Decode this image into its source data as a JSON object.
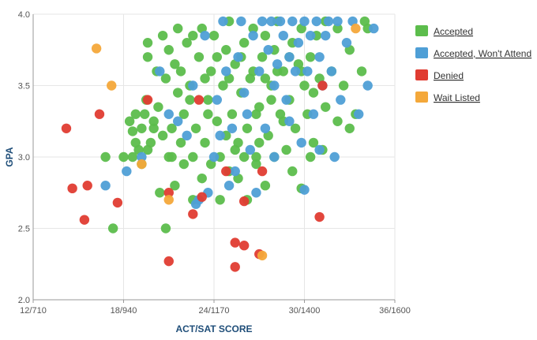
{
  "chart_data": {
    "type": "scatter",
    "xlabel": "ACT/SAT SCORE",
    "ylabel": "GPA",
    "xlim": [
      12,
      36
    ],
    "ylim": [
      2.0,
      4.0
    ],
    "x_ticks": [
      {
        "value": 12,
        "label": "12/710"
      },
      {
        "value": 18,
        "label": "18/940"
      },
      {
        "value": 24,
        "label": "24/1170"
      },
      {
        "value": 30,
        "label": "30/1400"
      },
      {
        "value": 36,
        "label": "36/1600"
      }
    ],
    "y_ticks": [
      {
        "value": 2.0,
        "label": "2.0"
      },
      {
        "value": 2.5,
        "label": "2.5"
      },
      {
        "value": 3.0,
        "label": "3.0"
      },
      {
        "value": 3.5,
        "label": "3.5"
      },
      {
        "value": 4.0,
        "label": "4.0"
      }
    ],
    "grid": true,
    "legend_position": "right",
    "series": [
      {
        "name": "Accepted",
        "color": "#5cbd4c",
        "points": [
          [
            18.4,
            3.25
          ],
          [
            18.6,
            3.18
          ],
          [
            18.8,
            3.3
          ],
          [
            19.0,
            3.05
          ],
          [
            19.2,
            3.2
          ],
          [
            19.5,
            3.4
          ],
          [
            19.6,
            3.7
          ],
          [
            19.6,
            3.8
          ],
          [
            19.8,
            3.1
          ],
          [
            20.0,
            3.25
          ],
          [
            20.3,
            3.35
          ],
          [
            20.6,
            3.85
          ],
          [
            20.8,
            3.55
          ],
          [
            21.0,
            3.0
          ],
          [
            21.2,
            3.2
          ],
          [
            21.4,
            3.65
          ],
          [
            21.6,
            3.9
          ],
          [
            21.6,
            3.45
          ],
          [
            21.8,
            3.1
          ],
          [
            22.0,
            3.3
          ],
          [
            22.2,
            3.8
          ],
          [
            22.4,
            3.5
          ],
          [
            22.6,
            3.0
          ],
          [
            22.8,
            3.2
          ],
          [
            23.0,
            3.7
          ],
          [
            23.2,
            3.9
          ],
          [
            23.4,
            3.1
          ],
          [
            23.6,
            3.4
          ],
          [
            23.8,
            3.6
          ],
          [
            24.0,
            3.85
          ],
          [
            24.2,
            3.25
          ],
          [
            24.4,
            3.0
          ],
          [
            24.6,
            3.5
          ],
          [
            24.8,
            3.75
          ],
          [
            25.0,
            3.95
          ],
          [
            25.2,
            3.3
          ],
          [
            25.4,
            3.65
          ],
          [
            25.6,
            3.1
          ],
          [
            25.8,
            3.45
          ],
          [
            26.0,
            3.8
          ],
          [
            26.2,
            3.2
          ],
          [
            26.4,
            3.55
          ],
          [
            26.6,
            3.9
          ],
          [
            26.8,
            3.0
          ],
          [
            27.0,
            3.35
          ],
          [
            27.2,
            3.7
          ],
          [
            27.4,
            3.85
          ],
          [
            27.6,
            3.15
          ],
          [
            27.8,
            3.5
          ],
          [
            28.0,
            3.75
          ],
          [
            28.2,
            3.95
          ],
          [
            28.4,
            3.3
          ],
          [
            28.6,
            3.6
          ],
          [
            28.8,
            3.05
          ],
          [
            29.0,
            3.4
          ],
          [
            29.2,
            3.8
          ],
          [
            29.4,
            3.2
          ],
          [
            29.6,
            3.65
          ],
          [
            29.8,
            3.9
          ],
          [
            30.0,
            3.5
          ],
          [
            30.2,
            3.3
          ],
          [
            30.4,
            3.7
          ],
          [
            30.6,
            3.1
          ],
          [
            30.8,
            3.85
          ],
          [
            31.0,
            3.55
          ],
          [
            31.4,
            3.95
          ],
          [
            31.8,
            3.6
          ],
          [
            32.2,
            3.9
          ],
          [
            32.6,
            3.5
          ],
          [
            33.0,
            3.75
          ],
          [
            33.4,
            3.3
          ],
          [
            33.8,
            3.6
          ],
          [
            34.2,
            3.9
          ],
          [
            34.0,
            3.95
          ],
          [
            16.8,
            3.0
          ],
          [
            17.3,
            2.5
          ],
          [
            18.0,
            3.0
          ],
          [
            18.6,
            3.0
          ],
          [
            19.2,
            2.95
          ],
          [
            19.6,
            3.05
          ],
          [
            20.0,
            3.2
          ],
          [
            20.4,
            2.75
          ],
          [
            20.8,
            2.5
          ],
          [
            21.4,
            2.8
          ],
          [
            22.0,
            2.95
          ],
          [
            22.6,
            2.7
          ],
          [
            23.2,
            2.85
          ],
          [
            23.8,
            2.95
          ],
          [
            24.4,
            2.7
          ],
          [
            25.0,
            2.9
          ],
          [
            25.6,
            2.85
          ],
          [
            26.2,
            2.7
          ],
          [
            26.8,
            2.95
          ],
          [
            27.4,
            2.8
          ],
          [
            28.0,
            3.0
          ],
          [
            29.2,
            2.9
          ],
          [
            29.8,
            2.78
          ],
          [
            30.4,
            3.0
          ],
          [
            31.2,
            3.05
          ],
          [
            20.2,
            3.6
          ],
          [
            21.0,
            3.75
          ],
          [
            21.8,
            3.6
          ],
          [
            22.6,
            3.85
          ],
          [
            23.4,
            3.55
          ],
          [
            24.2,
            3.7
          ],
          [
            25.0,
            3.55
          ],
          [
            25.8,
            3.7
          ],
          [
            26.6,
            3.6
          ],
          [
            27.4,
            3.55
          ],
          [
            28.2,
            3.6
          ],
          [
            29.0,
            3.7
          ],
          [
            29.8,
            3.6
          ],
          [
            30.6,
            3.45
          ],
          [
            31.4,
            3.35
          ],
          [
            32.2,
            3.25
          ],
          [
            33.0,
            3.2
          ],
          [
            28.6,
            3.25
          ],
          [
            27.0,
            3.1
          ],
          [
            26.0,
            3.0
          ],
          [
            24.8,
            3.15
          ],
          [
            23.6,
            3.3
          ],
          [
            22.4,
            3.4
          ],
          [
            21.2,
            3.0
          ],
          [
            20.6,
            3.15
          ],
          [
            19.4,
            3.3
          ],
          [
            18.8,
            3.1
          ],
          [
            25.4,
            3.05
          ],
          [
            26.8,
            3.3
          ],
          [
            27.8,
            3.4
          ]
        ]
      },
      {
        "name": "Accepted, Won't Attend",
        "color": "#4f9fd6",
        "points": [
          [
            16.8,
            2.8
          ],
          [
            18.2,
            2.9
          ],
          [
            19.2,
            3.0
          ],
          [
            20.4,
            3.6
          ],
          [
            21.0,
            3.3
          ],
          [
            21.6,
            3.25
          ],
          [
            22.2,
            3.15
          ],
          [
            22.6,
            3.5
          ],
          [
            23.0,
            2.7
          ],
          [
            23.4,
            3.85
          ],
          [
            23.6,
            2.75
          ],
          [
            24.0,
            3.0
          ],
          [
            24.2,
            3.4
          ],
          [
            24.6,
            3.95
          ],
          [
            24.8,
            3.6
          ],
          [
            25.0,
            2.8
          ],
          [
            25.2,
            3.2
          ],
          [
            25.6,
            3.7
          ],
          [
            25.8,
            3.95
          ],
          [
            26.0,
            3.45
          ],
          [
            26.2,
            3.3
          ],
          [
            26.6,
            3.85
          ],
          [
            26.8,
            2.75
          ],
          [
            27.0,
            3.6
          ],
          [
            27.2,
            3.95
          ],
          [
            27.4,
            3.2
          ],
          [
            27.6,
            3.75
          ],
          [
            27.8,
            3.95
          ],
          [
            28.0,
            3.5
          ],
          [
            28.2,
            3.65
          ],
          [
            28.4,
            3.95
          ],
          [
            28.6,
            3.85
          ],
          [
            28.8,
            3.4
          ],
          [
            29.0,
            3.7
          ],
          [
            29.2,
            3.95
          ],
          [
            29.4,
            3.6
          ],
          [
            29.6,
            3.8
          ],
          [
            29.8,
            3.1
          ],
          [
            30.0,
            3.95
          ],
          [
            30.2,
            3.6
          ],
          [
            30.4,
            3.85
          ],
          [
            30.6,
            3.3
          ],
          [
            30.8,
            3.95
          ],
          [
            31.0,
            3.7
          ],
          [
            31.2,
            3.5
          ],
          [
            31.4,
            3.85
          ],
          [
            31.6,
            3.95
          ],
          [
            31.8,
            3.6
          ],
          [
            32.2,
            3.95
          ],
          [
            32.4,
            3.4
          ],
          [
            32.8,
            3.8
          ],
          [
            33.2,
            3.95
          ],
          [
            33.6,
            3.3
          ],
          [
            34.2,
            3.5
          ],
          [
            34.6,
            3.9
          ],
          [
            28.0,
            3.0
          ],
          [
            29.0,
            3.25
          ],
          [
            30.0,
            2.77
          ],
          [
            31.0,
            3.05
          ],
          [
            32.0,
            3.0
          ],
          [
            25.4,
            2.9
          ],
          [
            26.4,
            3.05
          ],
          [
            22.8,
            2.67
          ],
          [
            24.4,
            3.15
          ]
        ]
      },
      {
        "name": "Denied",
        "color": "#e03c31",
        "points": [
          [
            14.2,
            3.2
          ],
          [
            14.6,
            2.78
          ],
          [
            15.4,
            2.56
          ],
          [
            15.6,
            2.8
          ],
          [
            16.4,
            3.3
          ],
          [
            17.6,
            2.68
          ],
          [
            19.6,
            3.4
          ],
          [
            21.0,
            2.75
          ],
          [
            21.0,
            2.27
          ],
          [
            22.6,
            2.6
          ],
          [
            23.2,
            2.72
          ],
          [
            23.0,
            3.4
          ],
          [
            24.8,
            2.9
          ],
          [
            25.4,
            2.4
          ],
          [
            25.4,
            2.23
          ],
          [
            26.0,
            2.38
          ],
          [
            26.0,
            2.69
          ],
          [
            27.0,
            2.32
          ],
          [
            27.2,
            2.9
          ],
          [
            31.0,
            2.58
          ],
          [
            31.2,
            3.5
          ]
        ]
      },
      {
        "name": "Wait Listed",
        "color": "#f4a83a",
        "points": [
          [
            16.2,
            3.76
          ],
          [
            17.2,
            3.5
          ],
          [
            19.2,
            2.95
          ],
          [
            21.0,
            2.7
          ],
          [
            27.2,
            2.31
          ],
          [
            33.4,
            3.9
          ]
        ]
      }
    ]
  }
}
